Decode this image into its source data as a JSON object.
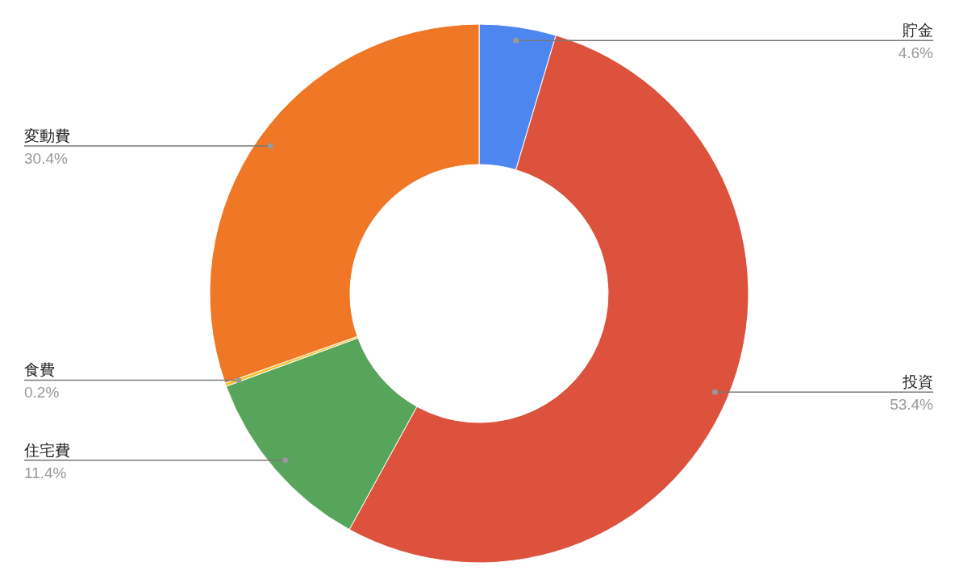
{
  "chart_data": {
    "type": "donut",
    "categories": [
      "貯金",
      "投資",
      "住宅費",
      "食費",
      "変動費"
    ],
    "values": [
      4.6,
      53.4,
      11.4,
      0.2,
      30.4
    ],
    "colors": [
      "#4e86f0",
      "#dc523d",
      "#57a55a",
      "#f6bf26",
      "#ef7726"
    ],
    "value_labels": [
      "4.6%",
      "53.4%",
      "11.4%",
      "0.2%",
      "30.4%"
    ],
    "legend": false
  }
}
